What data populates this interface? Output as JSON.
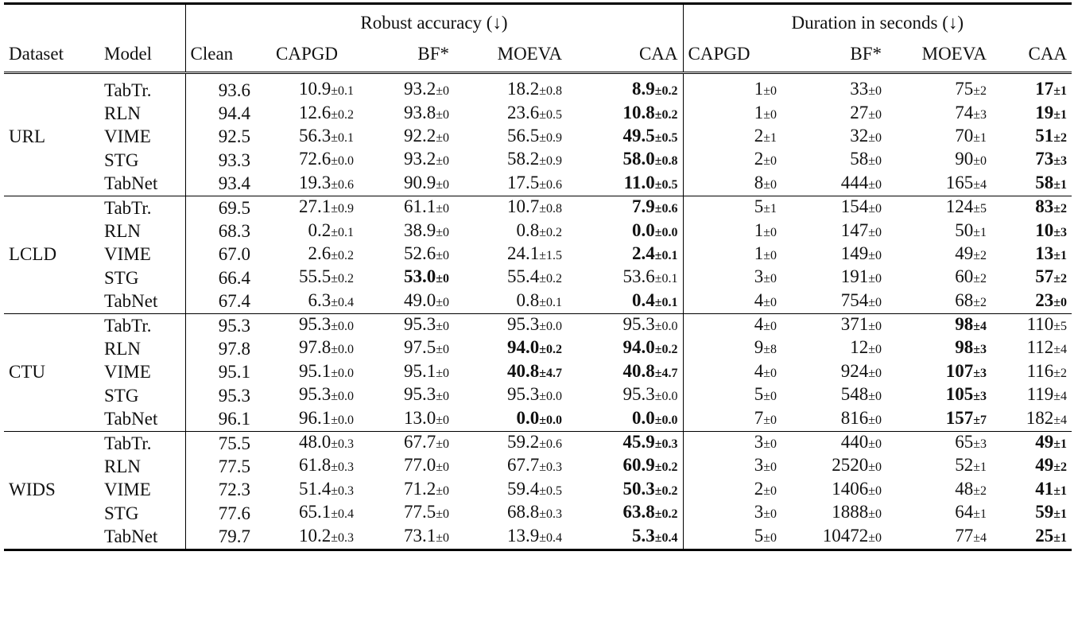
{
  "headers": {
    "dataset": "Dataset",
    "model": "Model",
    "robust_group": "Robust accuracy (↓)",
    "duration_group": "Duration in seconds (↓)",
    "robust_cols": [
      "Clean",
      "CAPGD",
      "BF*",
      "MOEVA",
      "CAA"
    ],
    "duration_cols": [
      "CAPGD",
      "BF*",
      "MOEVA",
      "CAA"
    ]
  },
  "groups": [
    {
      "dataset": "URL",
      "rows": [
        {
          "model": "TabTr.",
          "clean": "93.6",
          "robust": [
            [
              "10.9",
              "±0.1",
              false
            ],
            [
              "93.2",
              "±0",
              false
            ],
            [
              "18.2",
              "±0.8",
              false
            ],
            [
              "8.9",
              "±0.2",
              true
            ]
          ],
          "duration": [
            [
              "1",
              "±0",
              false
            ],
            [
              "33",
              "±0",
              false
            ],
            [
              "75",
              "±2",
              false
            ],
            [
              "17",
              "±1",
              true
            ]
          ]
        },
        {
          "model": "RLN",
          "clean": "94.4",
          "robust": [
            [
              "12.6",
              "±0.2",
              false
            ],
            [
              "93.8",
              "±0",
              false
            ],
            [
              "23.6",
              "±0.5",
              false
            ],
            [
              "10.8",
              "±0.2",
              true
            ]
          ],
          "duration": [
            [
              "1",
              "±0",
              false
            ],
            [
              "27",
              "±0",
              false
            ],
            [
              "74",
              "±3",
              false
            ],
            [
              "19",
              "±1",
              true
            ]
          ]
        },
        {
          "model": "VIME",
          "clean": "92.5",
          "robust": [
            [
              "56.3",
              "±0.1",
              false
            ],
            [
              "92.2",
              "±0",
              false
            ],
            [
              "56.5",
              "±0.9",
              false
            ],
            [
              "49.5",
              "±0.5",
              true
            ]
          ],
          "duration": [
            [
              "2",
              "±1",
              false
            ],
            [
              "32",
              "±0",
              false
            ],
            [
              "70",
              "±1",
              false
            ],
            [
              "51",
              "±2",
              true
            ]
          ]
        },
        {
          "model": "STG",
          "clean": "93.3",
          "robust": [
            [
              "72.6",
              "±0.0",
              false
            ],
            [
              "93.2",
              "±0",
              false
            ],
            [
              "58.2",
              "±0.9",
              false
            ],
            [
              "58.0",
              "±0.8",
              true
            ]
          ],
          "duration": [
            [
              "2",
              "±0",
              false
            ],
            [
              "58",
              "±0",
              false
            ],
            [
              "90",
              "±0",
              false
            ],
            [
              "73",
              "±3",
              true
            ]
          ]
        },
        {
          "model": "TabNet",
          "clean": "93.4",
          "robust": [
            [
              "19.3",
              "±0.6",
              false
            ],
            [
              "90.9",
              "±0",
              false
            ],
            [
              "17.5",
              "±0.6",
              false
            ],
            [
              "11.0",
              "±0.5",
              true
            ]
          ],
          "duration": [
            [
              "8",
              "±0",
              false
            ],
            [
              "444",
              "±0",
              false
            ],
            [
              "165",
              "±4",
              false
            ],
            [
              "58",
              "±1",
              true
            ]
          ]
        }
      ]
    },
    {
      "dataset": "LCLD",
      "rows": [
        {
          "model": "TabTr.",
          "clean": "69.5",
          "robust": [
            [
              "27.1",
              "±0.9",
              false
            ],
            [
              "61.1",
              "±0",
              false
            ],
            [
              "10.7",
              "±0.8",
              false
            ],
            [
              "7.9",
              "±0.6",
              true
            ]
          ],
          "duration": [
            [
              "5",
              "±1",
              false
            ],
            [
              "154",
              "±0",
              false
            ],
            [
              "124",
              "±5",
              false
            ],
            [
              "83",
              "±2",
              true
            ]
          ]
        },
        {
          "model": "RLN",
          "clean": "68.3",
          "robust": [
            [
              "0.2",
              "±0.1",
              false
            ],
            [
              "38.9",
              "±0",
              false
            ],
            [
              "0.8",
              "±0.2",
              false
            ],
            [
              "0.0",
              "±0.0",
              true
            ]
          ],
          "duration": [
            [
              "1",
              "±0",
              false
            ],
            [
              "147",
              "±0",
              false
            ],
            [
              "50",
              "±1",
              false
            ],
            [
              "10",
              "±3",
              true
            ]
          ]
        },
        {
          "model": "VIME",
          "clean": "67.0",
          "robust": [
            [
              "2.6",
              "±0.2",
              false
            ],
            [
              "52.6",
              "±0",
              false
            ],
            [
              "24.1",
              "±1.5",
              false
            ],
            [
              "2.4",
              "±0.1",
              true
            ]
          ],
          "duration": [
            [
              "1",
              "±0",
              false
            ],
            [
              "149",
              "±0",
              false
            ],
            [
              "49",
              "±2",
              false
            ],
            [
              "13",
              "±1",
              true
            ]
          ]
        },
        {
          "model": "STG",
          "clean": "66.4",
          "robust": [
            [
              "55.5",
              "±0.2",
              false
            ],
            [
              "53.0",
              "±0",
              true
            ],
            [
              "55.4",
              "±0.2",
              false
            ],
            [
              "53.6",
              "±0.1",
              false
            ]
          ],
          "duration": [
            [
              "3",
              "±0",
              false
            ],
            [
              "191",
              "±0",
              false
            ],
            [
              "60",
              "±2",
              false
            ],
            [
              "57",
              "±2",
              true
            ]
          ]
        },
        {
          "model": "TabNet",
          "clean": "67.4",
          "robust": [
            [
              "6.3",
              "±0.4",
              false
            ],
            [
              "49.0",
              "±0",
              false
            ],
            [
              "0.8",
              "±0.1",
              false
            ],
            [
              "0.4",
              "±0.1",
              true
            ]
          ],
          "duration": [
            [
              "4",
              "±0",
              false
            ],
            [
              "754",
              "±0",
              false
            ],
            [
              "68",
              "±2",
              false
            ],
            [
              "23",
              "±0",
              true
            ]
          ]
        }
      ]
    },
    {
      "dataset": "CTU",
      "rows": [
        {
          "model": "TabTr.",
          "clean": "95.3",
          "robust": [
            [
              "95.3",
              "±0.0",
              false
            ],
            [
              "95.3",
              "±0",
              false
            ],
            [
              "95.3",
              "±0.0",
              false
            ],
            [
              "95.3",
              "±0.0",
              false
            ]
          ],
          "duration": [
            [
              "4",
              "±0",
              false
            ],
            [
              "371",
              "±0",
              false
            ],
            [
              "98",
              "±4",
              true
            ],
            [
              "110",
              "±5",
              false
            ]
          ]
        },
        {
          "model": "RLN",
          "clean": "97.8",
          "robust": [
            [
              "97.8",
              "±0.0",
              false
            ],
            [
              "97.5",
              "±0",
              false
            ],
            [
              "94.0",
              "±0.2",
              true
            ],
            [
              "94.0",
              "±0.2",
              true
            ]
          ],
          "duration": [
            [
              "9",
              "±8",
              false
            ],
            [
              "12",
              "±0",
              false
            ],
            [
              "98",
              "±3",
              true
            ],
            [
              "112",
              "±4",
              false
            ]
          ]
        },
        {
          "model": "VIME",
          "clean": "95.1",
          "robust": [
            [
              "95.1",
              "±0.0",
              false
            ],
            [
              "95.1",
              "±0",
              false
            ],
            [
              "40.8",
              "±4.7",
              true
            ],
            [
              "40.8",
              "±4.7",
              true
            ]
          ],
          "duration": [
            [
              "4",
              "±0",
              false
            ],
            [
              "924",
              "±0",
              false
            ],
            [
              "107",
              "±3",
              true
            ],
            [
              "116",
              "±2",
              false
            ]
          ]
        },
        {
          "model": "STG",
          "clean": "95.3",
          "robust": [
            [
              "95.3",
              "±0.0",
              false
            ],
            [
              "95.3",
              "±0",
              false
            ],
            [
              "95.3",
              "±0.0",
              false
            ],
            [
              "95.3",
              "±0.0",
              false
            ]
          ],
          "duration": [
            [
              "5",
              "±0",
              false
            ],
            [
              "548",
              "±0",
              false
            ],
            [
              "105",
              "±3",
              true
            ],
            [
              "119",
              "±4",
              false
            ]
          ]
        },
        {
          "model": "TabNet",
          "clean": "96.1",
          "robust": [
            [
              "96.1",
              "±0.0",
              false
            ],
            [
              "13.0",
              "±0",
              false
            ],
            [
              "0.0",
              "±0.0",
              true
            ],
            [
              "0.0",
              "±0.0",
              true
            ]
          ],
          "duration": [
            [
              "7",
              "±0",
              false
            ],
            [
              "816",
              "±0",
              false
            ],
            [
              "157",
              "±7",
              true
            ],
            [
              "182",
              "±4",
              false
            ]
          ]
        }
      ]
    },
    {
      "dataset": "WIDS",
      "rows": [
        {
          "model": "TabTr.",
          "clean": "75.5",
          "robust": [
            [
              "48.0",
              "±0.3",
              false
            ],
            [
              "67.7",
              "±0",
              false
            ],
            [
              "59.2",
              "±0.6",
              false
            ],
            [
              "45.9",
              "±0.3",
              true
            ]
          ],
          "duration": [
            [
              "3",
              "±0",
              false
            ],
            [
              "440",
              "±0",
              false
            ],
            [
              "65",
              "±3",
              false
            ],
            [
              "49",
              "±1",
              true
            ]
          ]
        },
        {
          "model": "RLN",
          "clean": "77.5",
          "robust": [
            [
              "61.8",
              "±0.3",
              false
            ],
            [
              "77.0",
              "±0",
              false
            ],
            [
              "67.7",
              "±0.3",
              false
            ],
            [
              "60.9",
              "±0.2",
              true
            ]
          ],
          "duration": [
            [
              "3",
              "±0",
              false
            ],
            [
              "2520",
              "±0",
              false
            ],
            [
              "52",
              "±1",
              false
            ],
            [
              "49",
              "±2",
              true
            ]
          ]
        },
        {
          "model": "VIME",
          "clean": "72.3",
          "robust": [
            [
              "51.4",
              "±0.3",
              false
            ],
            [
              "71.2",
              "±0",
              false
            ],
            [
              "59.4",
              "±0.5",
              false
            ],
            [
              "50.3",
              "±0.2",
              true
            ]
          ],
          "duration": [
            [
              "2",
              "±0",
              false
            ],
            [
              "1406",
              "±0",
              false
            ],
            [
              "48",
              "±2",
              false
            ],
            [
              "41",
              "±1",
              true
            ]
          ]
        },
        {
          "model": "STG",
          "clean": "77.6",
          "robust": [
            [
              "65.1",
              "±0.4",
              false
            ],
            [
              "77.5",
              "±0",
              false
            ],
            [
              "68.8",
              "±0.3",
              false
            ],
            [
              "63.8",
              "±0.2",
              true
            ]
          ],
          "duration": [
            [
              "3",
              "±0",
              false
            ],
            [
              "1888",
              "±0",
              false
            ],
            [
              "64",
              "±1",
              false
            ],
            [
              "59",
              "±1",
              true
            ]
          ]
        },
        {
          "model": "TabNet",
          "clean": "79.7",
          "robust": [
            [
              "10.2",
              "±0.3",
              false
            ],
            [
              "73.1",
              "±0",
              false
            ],
            [
              "13.9",
              "±0.4",
              false
            ],
            [
              "5.3",
              "±0.4",
              true
            ]
          ],
          "duration": [
            [
              "5",
              "±0",
              false
            ],
            [
              "10472",
              "±0",
              false
            ],
            [
              "77",
              "±4",
              false
            ],
            [
              "25",
              "±1",
              true
            ]
          ]
        }
      ]
    }
  ]
}
